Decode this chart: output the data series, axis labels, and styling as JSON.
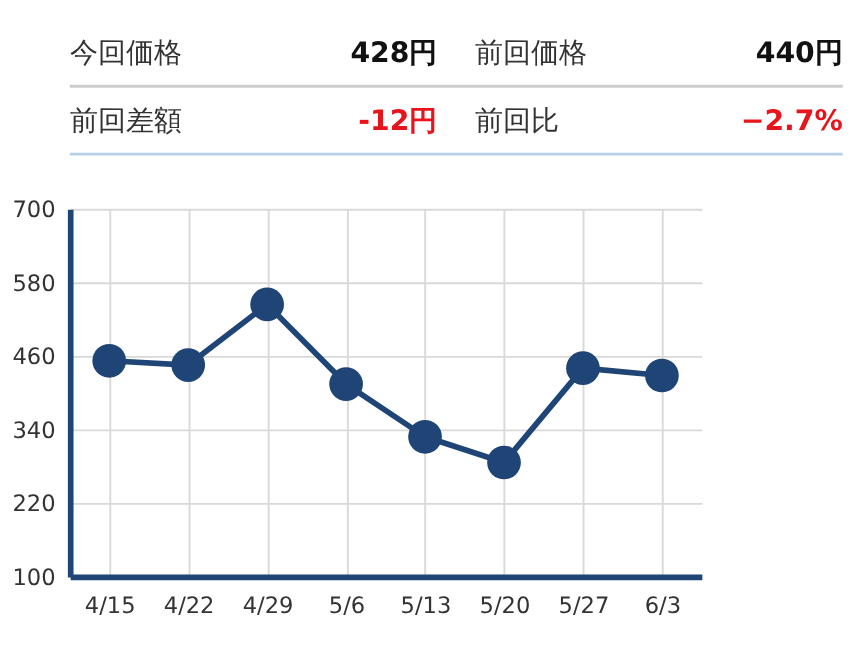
{
  "chart_data": [
    {
      "type": "other",
      "annotations": [
        "今回価格",
        "428円",
        "前回価格",
        "440円",
        "前回差額",
        "-12円",
        "前回比",
        "−2.7%"
      ],
      "colors": [
        "#333333",
        "#111111",
        "#333333",
        "#111111",
        "#333333",
        "#e8141c",
        "#333333",
        "#e8141c"
      ]
    },
    {
      "type": "line",
      "categories": [
        "4/15",
        "4/22",
        "4/29",
        "5/6",
        "5/13",
        "5/20",
        "5/27",
        "6/3"
      ],
      "series": [
        {
          "color": "#1f4577",
          "values": [
            452,
            445,
            544,
            414,
            328,
            286,
            440,
            428
          ]
        }
      ],
      "ylim": [
        100,
        700
      ],
      "yticks": [
        100,
        220,
        340,
        460,
        580,
        700
      ],
      "grid": true,
      "marker": "circle",
      "line_style": "solid"
    }
  ]
}
